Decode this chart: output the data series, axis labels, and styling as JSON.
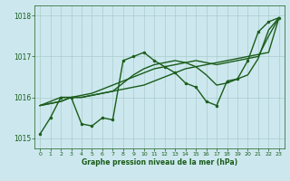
{
  "bg_color": "#cce8ee",
  "grid_color": "#aacccc",
  "line_color": "#1a5c1a",
  "marker_color": "#1a5c1a",
  "xlabel": "Graphe pression niveau de la mer (hPa)",
  "xlabel_color": "#1a5c1a",
  "ytick_color": "#1a5c1a",
  "xtick_color": "#1a5c1a",
  "ylim": [
    1014.75,
    1018.25
  ],
  "xlim": [
    -0.5,
    23.5
  ],
  "yticks": [
    1015,
    1016,
    1017,
    1018
  ],
  "xticks": [
    0,
    1,
    2,
    3,
    4,
    5,
    6,
    7,
    8,
    9,
    10,
    11,
    12,
    13,
    14,
    15,
    16,
    17,
    18,
    19,
    20,
    21,
    22,
    23
  ],
  "series": [
    {
      "x": [
        0,
        1,
        2,
        3,
        4,
        5,
        6,
        7,
        8,
        9,
        10,
        11,
        12,
        13,
        14,
        15,
        16,
        17,
        18,
        19,
        20,
        21,
        22,
        23
      ],
      "y": [
        1015.8,
        1015.85,
        1015.9,
        1016.0,
        1016.0,
        1016.05,
        1016.1,
        1016.15,
        1016.2,
        1016.25,
        1016.3,
        1016.4,
        1016.5,
        1016.6,
        1016.7,
        1016.75,
        1016.8,
        1016.85,
        1016.9,
        1016.95,
        1017.0,
        1017.05,
        1017.1,
        1017.95
      ],
      "marker": "None",
      "lw": 1.0
    },
    {
      "x": [
        0,
        1,
        2,
        3,
        4,
        5,
        6,
        7,
        8,
        9,
        10,
        11,
        12,
        13,
        14,
        15,
        16,
        17,
        18,
        19,
        20,
        21,
        22,
        23
      ],
      "y": [
        1015.8,
        1015.9,
        1016.0,
        1016.0,
        1016.05,
        1016.1,
        1016.2,
        1016.3,
        1016.4,
        1016.5,
        1016.6,
        1016.7,
        1016.75,
        1016.8,
        1016.85,
        1016.9,
        1016.85,
        1016.8,
        1016.85,
        1016.9,
        1016.95,
        1017.0,
        1017.5,
        1017.95
      ],
      "marker": "None",
      "lw": 1.0
    },
    {
      "x": [
        0,
        1,
        2,
        3,
        4,
        5,
        6,
        7,
        8,
        9,
        10,
        11,
        12,
        13,
        14,
        15,
        16,
        17,
        18,
        19,
        20,
        21,
        22,
        23
      ],
      "y": [
        1015.1,
        1015.5,
        1016.0,
        1016.0,
        1015.35,
        1015.3,
        1015.5,
        1015.45,
        1016.9,
        1017.0,
        1017.1,
        1016.9,
        1016.75,
        1016.6,
        1016.35,
        1016.25,
        1015.9,
        1015.8,
        1016.4,
        1016.45,
        1016.9,
        1017.6,
        1017.85,
        1017.95
      ],
      "marker": "o",
      "ms": 2.0,
      "lw": 1.0
    },
    {
      "x": [
        0,
        1,
        2,
        3,
        4,
        5,
        6,
        7,
        8,
        9,
        10,
        11,
        12,
        13,
        14,
        15,
        16,
        17,
        18,
        19,
        20,
        21,
        22,
        23
      ],
      "y": [
        1015.8,
        1015.85,
        1015.9,
        1016.0,
        1016.0,
        1016.05,
        1016.1,
        1016.15,
        1016.35,
        1016.55,
        1016.7,
        1016.8,
        1016.85,
        1016.9,
        1016.85,
        1016.75,
        1016.55,
        1016.3,
        1016.35,
        1016.45,
        1016.55,
        1016.95,
        1017.65,
        1017.95
      ],
      "marker": "None",
      "lw": 1.0
    }
  ]
}
